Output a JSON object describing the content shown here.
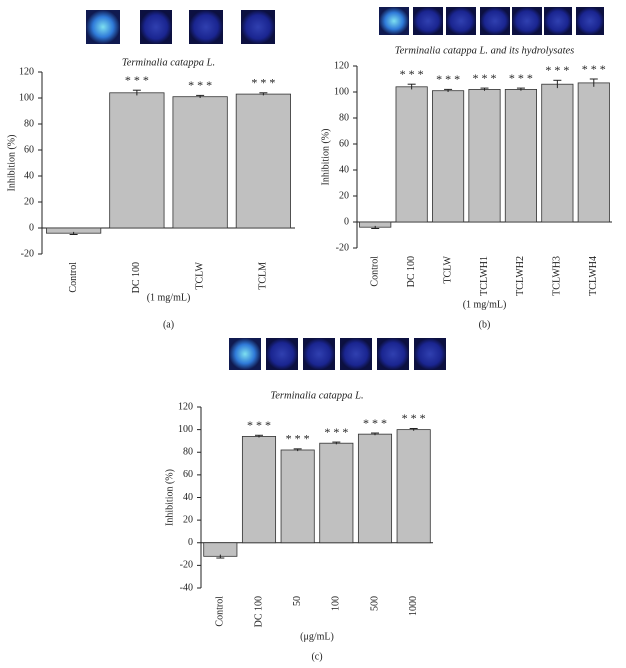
{
  "chart_data": [
    {
      "type": "bar",
      "title": "Terminalia catappa L.",
      "ylabel": "Inhibition (%)",
      "xlabel": "(1 mg/mL)",
      "panel": "(a)",
      "categories": [
        "Control",
        "DC 100",
        "TCLW",
        "TCLM"
      ],
      "values": [
        -4,
        104,
        101,
        103
      ],
      "errors": [
        1,
        2,
        1,
        1
      ],
      "significance": [
        null,
        "* * *",
        "* * *",
        "* * *"
      ],
      "color": "#c0c0c0",
      "ylim": [
        -20,
        120
      ],
      "yticks": [
        -20,
        0,
        20,
        40,
        60,
        80,
        100,
        120
      ]
    },
    {
      "type": "bar",
      "title": "Terminalia catappa L. and its hydrolysates",
      "ylabel": "Inhibition (%)",
      "xlabel": "(1 mg/mL)",
      "panel": "(b)",
      "categories": [
        "Control",
        "DC 100",
        "TCLW",
        "TCLWH1",
        "TCLWH2",
        "TCLWH3",
        "TCLWH4"
      ],
      "values": [
        -4,
        104,
        101,
        102,
        102,
        106,
        107
      ],
      "errors": [
        1,
        2,
        1,
        1,
        1,
        3,
        3
      ],
      "significance": [
        null,
        "* * *",
        "* * *",
        "* * *",
        "* * *",
        "* * *",
        "* * *"
      ],
      "color": "#c0c0c0",
      "ylim": [
        -20,
        120
      ],
      "yticks": [
        -20,
        0,
        20,
        40,
        60,
        80,
        100,
        120
      ]
    },
    {
      "type": "bar",
      "title": "Terminalia catappa L.",
      "ylabel": "Inhibition (%)",
      "xlabel": "(μg/mL)",
      "panel": "(c)",
      "categories": [
        "Control",
        "DC 100",
        "50",
        "100",
        "500",
        "1000"
      ],
      "values": [
        -12,
        94,
        82,
        88,
        96,
        100
      ],
      "errors": [
        1.5,
        1,
        1,
        1,
        1,
        1
      ],
      "significance": [
        null,
        "* * *",
        "* * *",
        "* * *",
        "* * *",
        "* * *"
      ],
      "color": "#c0c0c0",
      "ylim": [
        -40,
        120
      ],
      "yticks": [
        -40,
        -20,
        0,
        20,
        40,
        60,
        80,
        100,
        120
      ]
    }
  ]
}
